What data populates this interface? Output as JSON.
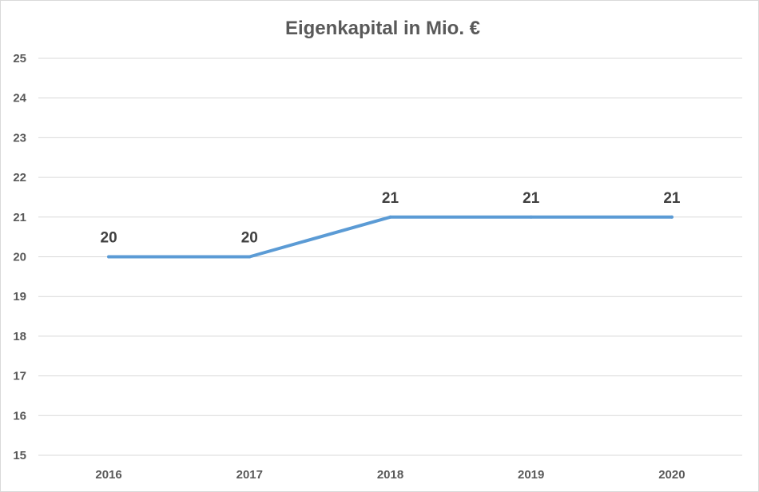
{
  "chart_data": {
    "type": "line",
    "title": "Eigenkapital in Mio. €",
    "categories": [
      "2016",
      "2017",
      "2018",
      "2019",
      "2020"
    ],
    "series": [
      {
        "values": [
          20,
          20,
          21,
          21,
          21
        ],
        "data_labels": [
          "20",
          "20",
          "21",
          "21",
          "21"
        ],
        "color": "#5b9bd5"
      }
    ],
    "ylim": [
      15,
      25
    ],
    "yticks": [
      "15",
      "16",
      "17",
      "18",
      "19",
      "20",
      "21",
      "22",
      "23",
      "24",
      "25"
    ],
    "grid": true,
    "legend": "none"
  }
}
